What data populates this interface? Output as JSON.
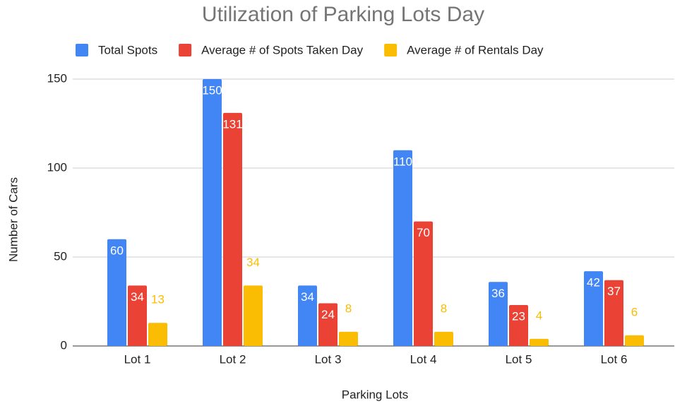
{
  "chart_data": {
    "type": "bar",
    "title": "Utilization of Parking Lots Day",
    "x_label": "Parking Lots",
    "y_label": "Number of Cars",
    "categories": [
      "Lot 1",
      "Lot 2",
      "Lot 3",
      "Lot 4",
      "Lot 5",
      "Lot 6"
    ],
    "series": [
      {
        "name": "Total Spots",
        "color": "#4285f4",
        "values": [
          60,
          150,
          34,
          110,
          36,
          42
        ]
      },
      {
        "name": "Average # of Spots Taken Day",
        "color": "#ea4335",
        "values": [
          34,
          131,
          24,
          70,
          23,
          37
        ]
      },
      {
        "name": "Average # of Rentals Day",
        "color": "#fbbc04",
        "values": [
          13,
          34,
          8,
          8,
          4,
          6
        ]
      }
    ],
    "ylim": [
      0,
      150
    ],
    "yticks": [
      0,
      50,
      100,
      150
    ],
    "grid": true,
    "legend": "top"
  }
}
